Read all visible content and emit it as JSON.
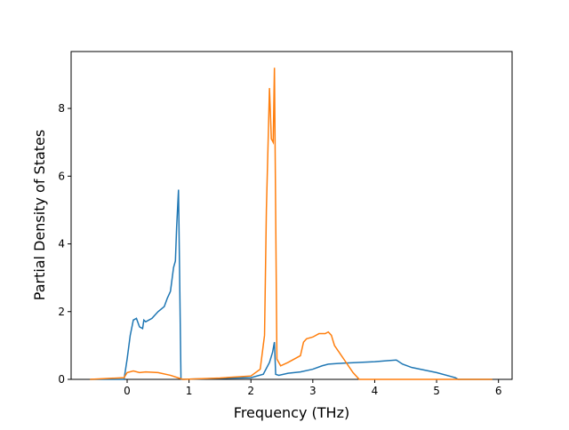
{
  "chart_data": {
    "type": "line",
    "xlabel": "Frequency (THz)",
    "ylabel": "Partial Density of States",
    "xlim": [
      -0.905,
      6.22
    ],
    "ylim": [
      0,
      9.68
    ],
    "xticks": [
      0,
      1,
      2,
      3,
      4,
      5,
      6
    ],
    "yticks": [
      0,
      2,
      4,
      6,
      8
    ],
    "series": [
      {
        "color": "#1f77b4",
        "x": [
          -0.6,
          -0.05,
          0.0,
          0.05,
          0.1,
          0.15,
          0.2,
          0.25,
          0.27,
          0.3,
          0.4,
          0.5,
          0.6,
          0.65,
          0.7,
          0.75,
          0.78,
          0.8,
          0.83,
          0.87,
          1.5,
          2.0,
          2.2,
          2.3,
          2.35,
          2.38,
          2.4,
          2.45,
          2.6,
          2.8,
          3.0,
          3.15,
          3.25,
          3.5,
          4.0,
          4.2,
          4.35,
          4.45,
          4.6,
          5.0,
          5.3,
          5.35,
          5.9
        ],
        "values": [
          0,
          0,
          0.6,
          1.3,
          1.75,
          1.8,
          1.55,
          1.5,
          1.75,
          1.7,
          1.8,
          2.0,
          2.15,
          2.4,
          2.6,
          3.3,
          3.5,
          4.5,
          5.6,
          0,
          0.03,
          0.05,
          0.15,
          0.5,
          0.8,
          1.1,
          0.15,
          0.12,
          0.18,
          0.22,
          0.3,
          0.4,
          0.45,
          0.48,
          0.52,
          0.55,
          0.57,
          0.45,
          0.35,
          0.2,
          0.05,
          0,
          0
        ]
      },
      {
        "color": "#ff7f0e",
        "x": [
          -0.6,
          -0.05,
          0.0,
          0.1,
          0.2,
          0.3,
          0.5,
          0.7,
          0.85,
          0.9,
          1.5,
          2.0,
          2.15,
          2.22,
          2.25,
          2.3,
          2.33,
          2.36,
          2.38,
          2.42,
          2.48,
          2.6,
          2.8,
          2.85,
          2.9,
          3.0,
          3.1,
          3.2,
          3.25,
          3.3,
          3.35,
          3.5,
          3.65,
          3.75,
          5.9
        ],
        "values": [
          0,
          0.05,
          0.2,
          0.25,
          0.2,
          0.22,
          0.2,
          0.12,
          0.03,
          0,
          0.04,
          0.1,
          0.3,
          1.3,
          5,
          8.6,
          7.1,
          7.0,
          9.2,
          0.6,
          0.4,
          0.5,
          0.7,
          1.1,
          1.2,
          1.25,
          1.35,
          1.35,
          1.4,
          1.3,
          1.0,
          0.6,
          0.2,
          0,
          0
        ]
      }
    ]
  }
}
